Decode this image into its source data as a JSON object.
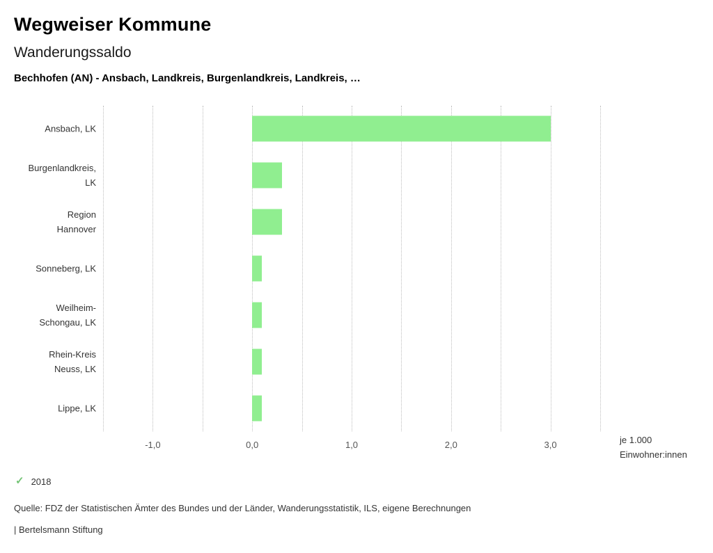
{
  "header": {
    "app_title": "Wegweiser Kommune",
    "chart_title": "Wanderungssaldo",
    "subtitle": "Bechhofen (AN) - Ansbach, Landkreis, Burgenlandkreis, Landkreis, …"
  },
  "legend": {
    "check_glyph": "✓",
    "check_color": "#74c476",
    "year": "2018"
  },
  "footer": {
    "source": "Quelle: FDZ der Statistischen Ämter des Bundes und der Länder, Wanderungsstatistik, ILS, eigene Berechnungen",
    "brand": "| Bertelsmann Stiftung"
  },
  "chart_data": {
    "type": "bar",
    "orientation": "horizontal",
    "title": "Wanderungssaldo",
    "subtitle": "Bechhofen (AN) - Ansbach, Landkreis, Burgenlandkreis, Landkreis, …",
    "categories": [
      "Ansbach, LK",
      "Burgenlandkreis, LK",
      "Region Hannover",
      "Sonneberg, LK",
      "Weilheim-Schongau, LK",
      "Rhein-Kreis Neuss, LK",
      "Lippe, LK"
    ],
    "category_label_lines": [
      [
        "Ansbach, LK"
      ],
      [
        "Burgenlandkreis,",
        "LK"
      ],
      [
        "Region",
        "Hannover"
      ],
      [
        "Sonneberg, LK"
      ],
      [
        "Weilheim-",
        "Schongau, LK"
      ],
      [
        "Rhein-Kreis",
        "Neuss, LK"
      ],
      [
        "Lippe, LK"
      ]
    ],
    "series": [
      {
        "name": "2018",
        "values": [
          3.0,
          0.3,
          0.3,
          0.1,
          0.1,
          0.1,
          0.1
        ]
      }
    ],
    "xlim": [
      -1.5,
      3.5
    ],
    "grid_step": 0.5,
    "grid": true,
    "x_ticks": [
      {
        "value": -1,
        "label": "-1,0"
      },
      {
        "value": 0,
        "label": "0,0"
      },
      {
        "value": 1,
        "label": "1,0"
      },
      {
        "value": 2,
        "label": "2,0"
      },
      {
        "value": 3,
        "label": "3,0"
      }
    ],
    "bar_color": "#90ee90",
    "unit_label_lines": [
      "je 1.000",
      "Einwohner:innen"
    ],
    "xlabel": "je 1.000 Einwohner:innen",
    "ylabel": "",
    "legend_position": "bottom-left"
  }
}
